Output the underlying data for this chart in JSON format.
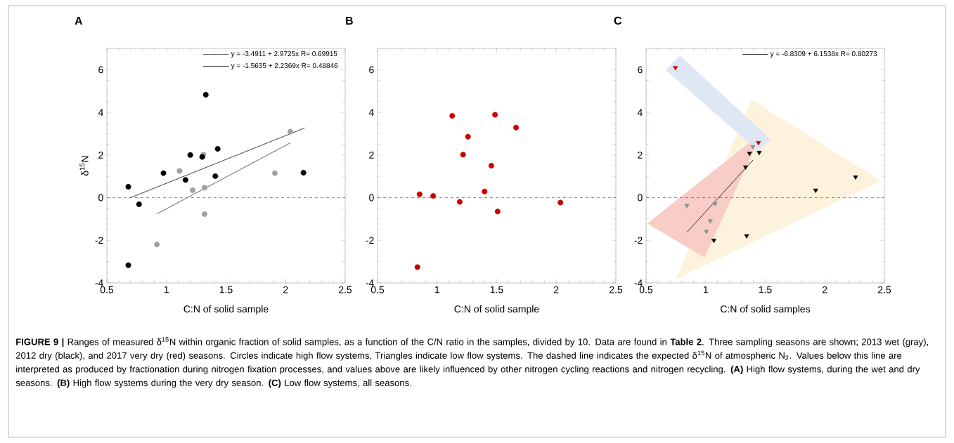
{
  "chart_data": [
    {
      "type": "scatter",
      "title": "A",
      "xlabel": "C:N of solid sample",
      "ylabel": "δ$^{15}$N",
      "xlim": [
        0.5,
        2.5
      ],
      "ylim": [
        -4,
        7
      ],
      "xticks": [
        0.5,
        1,
        1.5,
        2,
        2.5
      ],
      "yticks": [
        -4,
        -2,
        0,
        2,
        4,
        6
      ],
      "legend": "top right",
      "ref_lines": [
        {
          "axis": "y",
          "value": 0,
          "line_style": "dashed",
          "color": "#555555"
        }
      ],
      "series": [
        {
          "marker": "circle",
          "color": "#a0a0a0",
          "x": [
            1.11,
            1.22,
            1.31,
            1.32,
            1.32,
            0.92,
            1.91,
            2.04
          ],
          "values": [
            1.25,
            0.35,
            2.02,
            0.47,
            -0.77,
            -2.2,
            1.15,
            3.1
          ]
        },
        {
          "marker": "circle",
          "color": "#000000",
          "x": [
            0.68,
            0.77,
            0.68,
            0.975,
            1.16,
            1.2,
            1.3,
            1.33,
            1.43,
            1.41,
            2.15
          ],
          "values": [
            0.51,
            -0.31,
            -3.17,
            1.15,
            0.83,
            2.0,
            1.91,
            4.83,
            2.29,
            1.01,
            1.17
          ]
        },
        {
          "type": "line",
          "name": "y = -3.4911 + 2.9725x   R= 0.69915",
          "color": "#555555",
          "x": [
            0.92,
            2.04
          ],
          "values": [
            -0.76,
            2.57
          ]
        },
        {
          "type": "line",
          "name": "y = -1.5635 + 2.2369x   R= 0.48846",
          "color": "#333333",
          "x": [
            0.69,
            2.16
          ],
          "values": [
            -0.02,
            3.27
          ]
        }
      ],
      "annotations": [
        "**FIGURE 9 |** Ranges of measured δ$^{15}$N within organic fraction of solid samples, as a function of the C/N ratio in the samples, divided by 10. Data are found in **Table 2**. Three sampling seasons are shown; 2013 wet (gray), 2012 dry (black), and 2017 very dry (red) seasons. Circles indicate high flow systems, Triangles indicate low flow systems. The dashed line indicates the expected δ$^{15}$N of atmospheric N$_{2}$. Values below this line are interpreted as produced by fractionation during nitrogen fixation processes, and values above are likely influenced by other nitrogen cycling reactions and nitrogen recycling. **(A)** High flow systems, during the wet and dry seasons. **(B)** High flow systems during the very dry season. **(C)** Low flow systems, all seasons."
      ]
    },
    {
      "type": "scatter",
      "title": "B",
      "xlabel": "C:N of solid sample",
      "xlim": [
        0.5,
        2.5
      ],
      "ylim": [
        -4,
        7
      ],
      "xticks": [
        0.5,
        1,
        1.5,
        2,
        2.5
      ],
      "yticks": [
        -4,
        -2,
        0,
        2,
        4,
        6
      ],
      "ref_lines": [
        {
          "axis": "y",
          "value": 0,
          "line_style": "dashed",
          "color": "#555555"
        }
      ],
      "series": [
        {
          "marker": "circle",
          "color": "#cc0000",
          "x": [
            0.853,
            0.967,
            0.835,
            1.127,
            1.486,
            1.663,
            1.259,
            1.218,
            1.455,
            1.398,
            1.19,
            1.508,
            2.035
          ],
          "values": [
            0.16,
            0.08,
            -3.26,
            3.84,
            3.89,
            3.29,
            2.86,
            2.02,
            1.5,
            0.29,
            -0.2,
            -0.65,
            -0.23
          ]
        }
      ]
    },
    {
      "type": "scatter",
      "title": "C",
      "xlabel": "C:N of solid samples",
      "xlim": [
        0.5,
        2.5
      ],
      "ylim": [
        -4,
        7
      ],
      "xticks": [
        0.5,
        1,
        1.5,
        2,
        2.5
      ],
      "yticks": [
        -4,
        -2,
        0,
        2,
        4,
        6
      ],
      "legend": "top right",
      "ref_lines": [
        {
          "axis": "y",
          "value": 0,
          "line_style": "dashed",
          "color": "#555555"
        }
      ],
      "series": [
        {
          "type": "area",
          "color": "#fdf3dc",
          "x": [
            1.382,
            2.469,
            0.748
          ],
          "values": [
            4.6,
            0.79,
            -3.83
          ]
        },
        {
          "type": "area",
          "color": "#f8cdc8",
          "x": [
            0.51,
            1.474,
            0.99
          ],
          "values": [
            -1.21,
            3.06,
            -2.81
          ]
        },
        {
          "type": "area",
          "color": "#dfe6f4",
          "x": [
            0.663,
            0.785,
            1.545,
            1.447
          ],
          "values": [
            5.99,
            6.66,
            2.74,
            2.17
          ]
        },
        {
          "marker": "triangle",
          "color": "#909090",
          "x": [
            1.396,
            0.843,
            1.079,
            1.039,
            1.006
          ],
          "values": [
            2.39,
            -0.37,
            -0.28,
            -1.09,
            -1.58
          ]
        },
        {
          "marker": "triangle",
          "color": "#000000",
          "x": [
            1.368,
            1.449,
            1.335,
            1.923,
            2.258,
            1.069,
            1.344
          ],
          "values": [
            2.08,
            2.12,
            1.44,
            0.35,
            0.97,
            -2.0,
            -1.79
          ]
        },
        {
          "marker": "triangle",
          "color": "#cc0000",
          "x": [
            0.746,
            1.443
          ],
          "values": [
            6.1,
            2.58
          ]
        },
        {
          "type": "line",
          "name": "y = -6.8309 + 6.1538x   R= 0.80273",
          "color": "#222222",
          "x": [
            0.843,
            1.398
          ],
          "values": [
            -1.62,
            1.77
          ]
        }
      ]
    }
  ]
}
